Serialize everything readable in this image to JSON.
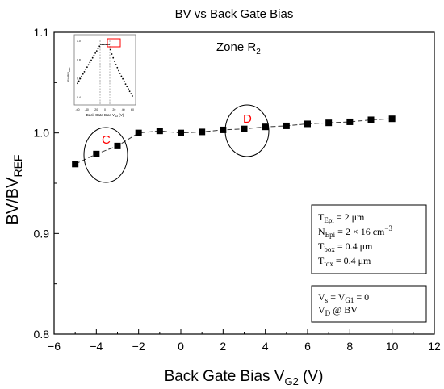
{
  "chart_data": {
    "type": "line",
    "title": "BV vs Back Gate Bias",
    "xlabel": {
      "main": "Back Gate Bias V",
      "sub": "G2",
      "unit": " (V)"
    },
    "ylabel": {
      "main": "BV/BV",
      "sub": "REF"
    },
    "xlim": [
      -6,
      12
    ],
    "ylim": [
      0.8,
      1.1
    ],
    "xticks": [
      -6,
      -4,
      -2,
      0,
      2,
      4,
      6,
      8,
      10,
      12
    ],
    "yticks": [
      0.8,
      0.9,
      1.0,
      1.1
    ],
    "xtick_labels": [
      "−6",
      "−4",
      "−2",
      "0",
      "2",
      "4",
      "6",
      "8",
      "10",
      "12"
    ],
    "ytick_labels": [
      "0.8",
      "0.9",
      "1.0",
      "1.1"
    ],
    "grid": false,
    "series": [
      {
        "x": [
          -5,
          -4,
          -3,
          -2,
          -1,
          0,
          1,
          2,
          3,
          4,
          5,
          6,
          7,
          8,
          9,
          10
        ],
        "y": [
          0.969,
          0.979,
          0.987,
          1.0,
          1.002,
          1.0,
          1.001,
          1.003,
          1.004,
          1.006,
          1.007,
          1.009,
          1.01,
          1.011,
          1.013,
          1.014
        ]
      }
    ],
    "annotations": {
      "zone": {
        "main": "Zone R",
        "sub": "2"
      },
      "circle_c": {
        "label": "C",
        "color": "#ff0000"
      },
      "circle_d": {
        "label": "D",
        "color": "#ff0000"
      },
      "params_box": [
        {
          "main": "T",
          "sub": "Epi",
          "value": " =  2 μm",
          "sup": ""
        },
        {
          "main": "N",
          "sub": "Epi",
          "value": " =  2 × 16 cm",
          "sup": "−3"
        },
        {
          "main": "T",
          "sub": "box",
          "value": " =  0.4 μm",
          "sup": ""
        },
        {
          "main": "T",
          "sub": "tox",
          "value": " =  0.4 μm",
          "sup": ""
        }
      ],
      "bias_box": [
        {
          "main": "V",
          "sub": "s",
          "mid": " = V",
          "sub2": "G1",
          "value": " = 0"
        },
        {
          "main": "V",
          "sub": "D",
          "mid": " @ BV",
          "sub2": "",
          "value": ""
        }
      ]
    },
    "inset": {
      "ylabel": "BV/BV",
      "ylabel_sub": "REF",
      "xlabel": "Back Gate Bias V",
      "xlabel_sub": "G2",
      "xlabel_unit": " (V)",
      "xticks": [
        "-60",
        "-40",
        "-20",
        "0",
        "20",
        "40",
        "60"
      ],
      "yticks": [
        "1.0",
        "0.8",
        "0.6",
        "0.4"
      ],
      "highlight_color": "#ff0000"
    }
  }
}
